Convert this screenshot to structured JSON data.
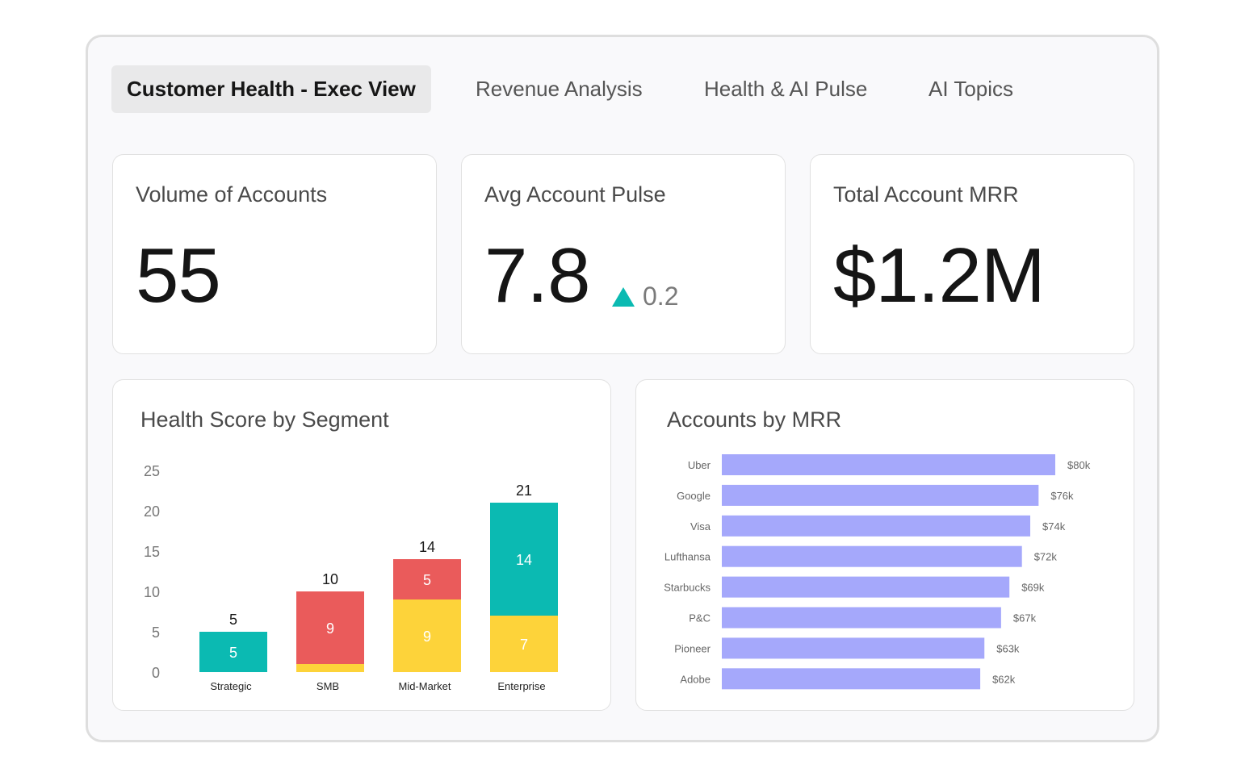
{
  "tabs": [
    {
      "label": "Customer Health - Exec View",
      "active": true
    },
    {
      "label": "Revenue Analysis",
      "active": false
    },
    {
      "label": "Health & AI Pulse",
      "active": false
    },
    {
      "label": "AI Topics",
      "active": false
    }
  ],
  "kpis": {
    "volume": {
      "title": "Volume of Accounts",
      "value": "55"
    },
    "pulse": {
      "title": "Avg Account Pulse",
      "value": "7.8",
      "delta": "0.2",
      "delta_direction": "up",
      "delta_color": "#0bbab2"
    },
    "mrr": {
      "title": "Total Account MRR",
      "value": "$1.2M"
    }
  },
  "colors": {
    "teal": "#0bbab2",
    "red": "#ea5b5b",
    "yellow": "#fdd33a",
    "lavender": "#a5a8fb"
  },
  "chart_data": [
    {
      "type": "bar",
      "stacked": true,
      "title": "Health Score by Segment",
      "categories": [
        "Strategic",
        "SMB",
        "Mid-Market",
        "Enterprise"
      ],
      "series": [
        {
          "name": "yellow",
          "color": "#fdd33a",
          "values": [
            0,
            1,
            9,
            7
          ],
          "labels": [
            "",
            "",
            "9",
            "7"
          ]
        },
        {
          "name": "red",
          "color": "#ea5b5b",
          "values": [
            0,
            9,
            5,
            0
          ],
          "labels": [
            "",
            "9",
            "5",
            ""
          ]
        },
        {
          "name": "teal",
          "color": "#0bbab2",
          "values": [
            5,
            0,
            0,
            14
          ],
          "labels": [
            "5",
            "",
            "",
            "14"
          ]
        }
      ],
      "totals": [
        "5",
        "10",
        "14",
        "21"
      ],
      "yticks": [
        "25",
        "20",
        "15",
        "10",
        "5",
        "0"
      ],
      "ylim": [
        0,
        25
      ],
      "grid": false
    },
    {
      "type": "bar",
      "orientation": "horizontal",
      "title": "Accounts by MRR",
      "categories": [
        "Uber",
        "Google",
        "Visa",
        "Lufthansa",
        "Starbucks",
        "P&C",
        "Pioneer",
        "Adobe"
      ],
      "values": [
        80,
        76,
        74,
        72,
        69,
        67,
        63,
        62
      ],
      "value_labels": [
        "$80k",
        "$76k",
        "$74k",
        "$72k",
        "$69k",
        "$67k",
        "$63k",
        "$62k"
      ],
      "color": "#a5a8fb",
      "unit": "k"
    }
  ]
}
